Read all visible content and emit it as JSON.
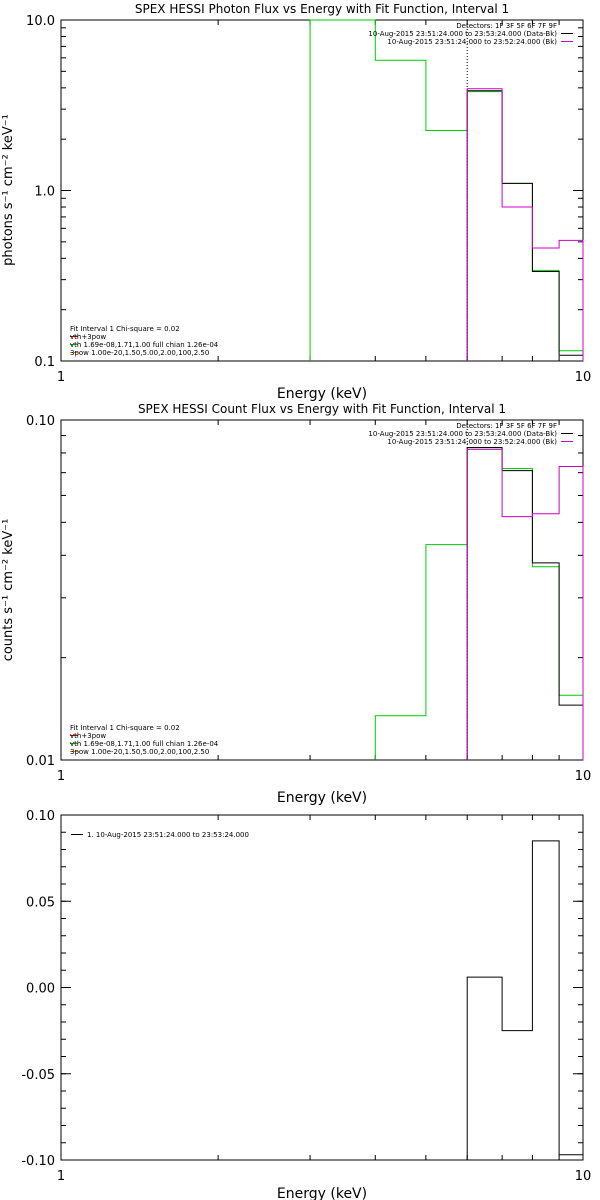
{
  "colors": {
    "black": "#000000",
    "magenta": "#cc00cc",
    "green": "#00cc00",
    "orange": "#dd8800",
    "red": "#cc0000"
  },
  "chart_data": [
    {
      "type": "line",
      "title": "SPEX HESSI Photon Flux vs Energy with Fit Function, Interval 1",
      "xlabel": "Energy (keV)",
      "ylabel": "photons s⁻¹ cm⁻² keV⁻¹",
      "xscale": "log",
      "yscale": "log",
      "xlim": [
        1,
        10
      ],
      "ylim": [
        0.1,
        10
      ],
      "xticks": [
        {
          "v": 1,
          "label": "1"
        },
        {
          "v": 10,
          "label": "10"
        }
      ],
      "yticks": [
        {
          "v": 10,
          "label": "10.0"
        },
        {
          "v": 1,
          "label": "1.0"
        },
        {
          "v": 0.1,
          "label": "0.1"
        }
      ],
      "legend_tr": {
        "header": "Detectors: 1F 3F 5F 6F 7F 9F",
        "entries": [
          {
            "text": "10-Aug-2015 23:51:24.000 to 23:53:24.000 (Data-Bk)",
            "color": "#000000"
          },
          {
            "text": "10-Aug-2015 23:51:24.000 to 23:52:24.000 (Bk)",
            "color": "#cc00cc"
          }
        ]
      },
      "legend_bl": {
        "header": "Fit Interval 1    Chi-square = 0.02",
        "entries": [
          {
            "text": "vth+3pow",
            "color": "#cc0000"
          },
          {
            "text": "vth 1.69e-08,1.71,1.00  full chian 1.26e-04",
            "color": "#00cc00"
          },
          {
            "text": "3pow 1.00e-20,1.50,5.00,2.00,100,2.50",
            "color": "#dd8800"
          }
        ]
      },
      "vline_x": 6.0,
      "series": [
        {
          "color": "#00cc00",
          "edges": [
            3,
            4,
            5,
            6,
            7,
            8,
            9,
            10
          ],
          "values": [
            10.0,
            5.8,
            2.25,
            3.8,
            1.1,
            0.34,
            0.115
          ]
        },
        {
          "color": "#000000",
          "edges": [
            6,
            7,
            8,
            9,
            10
          ],
          "values": [
            3.85,
            1.1,
            0.335,
            0.108
          ]
        },
        {
          "color": "#cc00cc",
          "edges": [
            6,
            7,
            8,
            9,
            10
          ],
          "values": [
            3.95,
            0.8,
            0.46,
            0.51
          ]
        }
      ]
    },
    {
      "type": "line",
      "title": "SPEX HESSI Count Flux vs Energy with Fit Function, Interval 1",
      "xlabel": "Energy (keV)",
      "ylabel": "counts s⁻¹ cm⁻² keV⁻¹",
      "xscale": "log",
      "yscale": "log",
      "xlim": [
        1,
        10
      ],
      "ylim": [
        0.01,
        0.1
      ],
      "xticks": [
        {
          "v": 1,
          "label": "1"
        },
        {
          "v": 10,
          "label": "10"
        }
      ],
      "yticks": [
        {
          "v": 0.1,
          "label": "0.10"
        },
        {
          "v": 0.01,
          "label": "0.01"
        }
      ],
      "legend_tr": {
        "header": "Detectors: 1F 3F 5F 6F 7F 9F",
        "entries": [
          {
            "text": "10-Aug-2015 23:51:24.000 to 23:53:24.000 (Data-Bk)",
            "color": "#000000"
          },
          {
            "text": "10-Aug-2015 23:51:24.000 to 23:52:24.000 (Bk)",
            "color": "#cc00cc"
          }
        ]
      },
      "legend_bl": {
        "header": "Fit Interval 1    Chi-square = 0.02",
        "entries": [
          {
            "text": "vth+3pow",
            "color": "#cc0000"
          },
          {
            "text": "vth 1.69e-08,1.71,1.00  full chian 1.26e-04",
            "color": "#00cc00"
          },
          {
            "text": "3pow 1.00e-20,1.50,5.00,2.00,100,2.50",
            "color": "#dd8800"
          }
        ]
      },
      "vline_x": 6.0,
      "series": [
        {
          "color": "#00cc00",
          "edges": [
            4,
            5,
            6,
            7,
            8,
            9,
            10
          ],
          "values": [
            0.0135,
            0.043,
            0.082,
            0.072,
            0.037,
            0.0155
          ]
        },
        {
          "color": "#000000",
          "edges": [
            6,
            7,
            8,
            9,
            10
          ],
          "values": [
            0.083,
            0.071,
            0.038,
            0.0145
          ]
        },
        {
          "color": "#cc00cc",
          "edges": [
            6,
            7,
            8,
            9,
            10
          ],
          "values": [
            0.082,
            0.052,
            0.053,
            0.073
          ]
        }
      ]
    },
    {
      "type": "line",
      "title": "",
      "xlabel": "Energy (keV)",
      "ylabel": "",
      "xscale": "log",
      "yscale": "linear",
      "xlim": [
        1,
        10
      ],
      "ylim": [
        -0.1,
        0.1
      ],
      "xticks": [
        {
          "v": 1,
          "label": "1"
        },
        {
          "v": 10,
          "label": "10"
        }
      ],
      "yticks": [
        {
          "v": 0.1,
          "label": "0.10"
        },
        {
          "v": 0.05,
          "label": "0.05"
        },
        {
          "v": 0.0,
          "label": "0.00"
        },
        {
          "v": -0.05,
          "label": "-0.05"
        },
        {
          "v": -0.1,
          "label": "-0.10"
        }
      ],
      "legend_tl": {
        "entries": [
          {
            "text": "1. 10-Aug-2015 23:51:24.000 to 23:53:24.000",
            "color": "#000000"
          }
        ]
      },
      "series": [
        {
          "color": "#000000",
          "edges": [
            6,
            7,
            8,
            9,
            10
          ],
          "values": [
            0.006,
            -0.025,
            0.085,
            -0.097
          ]
        }
      ]
    }
  ]
}
